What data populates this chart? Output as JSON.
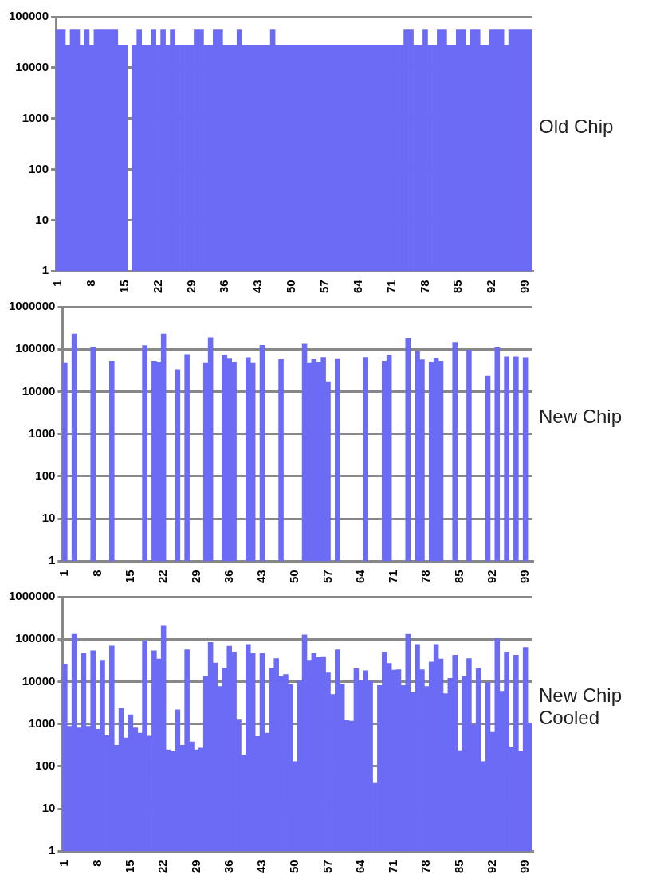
{
  "chart_data": [
    {
      "type": "bar",
      "title": "Old Chip",
      "color": "#6b6bf5",
      "log": true,
      "grid": "y",
      "ylim": [
        1,
        100000
      ],
      "yticks": [
        1,
        10,
        100,
        1000,
        10000,
        100000
      ],
      "categories": [
        "1",
        null,
        null,
        null,
        null,
        null,
        null,
        "8",
        null,
        null,
        null,
        null,
        null,
        null,
        "15",
        null,
        null,
        null,
        null,
        null,
        null,
        "22",
        null,
        null,
        null,
        null,
        null,
        null,
        "29",
        null,
        null,
        null,
        null,
        null,
        null,
        "36",
        null,
        null,
        null,
        null,
        null,
        null,
        "43",
        null,
        null,
        null,
        null,
        null,
        null,
        "50",
        null,
        null,
        null,
        null,
        null,
        null,
        "57",
        null,
        null,
        null,
        null,
        null,
        null,
        "64",
        null,
        null,
        null,
        null,
        null,
        null,
        "71",
        null,
        null,
        null,
        null,
        null,
        null,
        "78",
        null,
        null,
        null,
        null,
        null,
        null,
        "85",
        null,
        null,
        null,
        null,
        null,
        null,
        "92",
        null,
        null,
        null,
        null,
        null,
        null,
        "99",
        null
      ],
      "values": [
        55000,
        55000,
        28000,
        55000,
        55000,
        28000,
        55000,
        28000,
        55000,
        55000,
        55000,
        55000,
        55000,
        28000,
        28000,
        null,
        28000,
        55000,
        28000,
        28000,
        55000,
        28000,
        55000,
        28000,
        55000,
        28000,
        28000,
        28000,
        28000,
        55000,
        55000,
        28000,
        28000,
        55000,
        55000,
        28000,
        28000,
        28000,
        55000,
        28000,
        28000,
        28000,
        28000,
        28000,
        28000,
        55000,
        28000,
        28000,
        28000,
        28000,
        28000,
        28000,
        28000,
        28000,
        28000,
        28000,
        28000,
        28000,
        28000,
        28000,
        28000,
        28000,
        28000,
        28000,
        28000,
        28000,
        28000,
        28000,
        28000,
        28000,
        28000,
        28000,
        28000,
        55000,
        55000,
        28000,
        28000,
        55000,
        28000,
        28000,
        55000,
        55000,
        28000,
        28000,
        55000,
        55000,
        28000,
        55000,
        55000,
        28000,
        28000,
        55000,
        55000,
        55000,
        28000,
        55000,
        55000,
        55000,
        55000,
        55000
      ]
    },
    {
      "type": "bar",
      "title": "New Chip",
      "color": "#6b6bf5",
      "log": true,
      "grid": "y",
      "ylim": [
        1,
        1000000
      ],
      "yticks": [
        1,
        10,
        100,
        1000,
        10000,
        100000,
        1000000
      ],
      "categories": [
        "1",
        null,
        null,
        null,
        null,
        null,
        null,
        "8",
        null,
        null,
        null,
        null,
        null,
        null,
        "15",
        null,
        null,
        null,
        null,
        null,
        null,
        "22",
        null,
        null,
        null,
        null,
        null,
        null,
        "29",
        null,
        null,
        null,
        null,
        null,
        null,
        "36",
        null,
        null,
        null,
        null,
        null,
        null,
        "43",
        null,
        null,
        null,
        null,
        null,
        null,
        "50",
        null,
        null,
        null,
        null,
        null,
        null,
        "57",
        null,
        null,
        null,
        null,
        null,
        null,
        "64",
        null,
        null,
        null,
        null,
        null,
        null,
        "71",
        null,
        null,
        null,
        null,
        null,
        null,
        "78",
        null,
        null,
        null,
        null,
        null,
        null,
        "85",
        null,
        null,
        null,
        null,
        null,
        null,
        "92",
        null,
        null,
        null,
        null,
        null,
        null,
        "99",
        null
      ],
      "values": [
        48000,
        null,
        228000,
        null,
        null,
        null,
        112000,
        null,
        null,
        null,
        52000,
        null,
        null,
        null,
        null,
        null,
        null,
        122000,
        null,
        52000,
        50000,
        228000,
        null,
        null,
        33000,
        null,
        75000,
        null,
        null,
        null,
        48000,
        187000,
        null,
        null,
        72000,
        61000,
        50000,
        null,
        null,
        63000,
        48000,
        null,
        124000,
        null,
        null,
        null,
        58000,
        null,
        null,
        null,
        null,
        132000,
        48000,
        58000,
        50000,
        64000,
        17000,
        null,
        60000,
        null,
        null,
        null,
        null,
        null,
        64000,
        null,
        null,
        null,
        52000,
        73000,
        null,
        null,
        null,
        183000,
        null,
        87000,
        56000,
        null,
        50000,
        62000,
        52000,
        null,
        null,
        145000,
        null,
        null,
        95000,
        null,
        null,
        null,
        23000,
        null,
        108000,
        null,
        66000,
        null,
        66000,
        null,
        63000,
        null
      ]
    },
    {
      "type": "bar",
      "title": "New Chip Cooled",
      "color": "#6b6bf5",
      "log": true,
      "grid": "y",
      "ylim": [
        1,
        1000000
      ],
      "yticks": [
        1,
        10,
        100,
        1000,
        10000,
        100000,
        1000000
      ],
      "categories": [
        "1",
        null,
        null,
        null,
        null,
        null,
        null,
        "8",
        null,
        null,
        null,
        null,
        null,
        null,
        "15",
        null,
        null,
        null,
        null,
        null,
        null,
        "22",
        null,
        null,
        null,
        null,
        null,
        null,
        "29",
        null,
        null,
        null,
        null,
        null,
        null,
        "36",
        null,
        null,
        null,
        null,
        null,
        null,
        "43",
        null,
        null,
        null,
        null,
        null,
        null,
        "50",
        null,
        null,
        null,
        null,
        null,
        null,
        "57",
        null,
        null,
        null,
        null,
        null,
        null,
        "64",
        null,
        null,
        null,
        null,
        null,
        null,
        "71",
        null,
        null,
        null,
        null,
        null,
        null,
        "78",
        null,
        null,
        null,
        null,
        null,
        null,
        "85",
        null,
        null,
        null,
        null,
        null,
        null,
        "92",
        null,
        null,
        null,
        null,
        null,
        null,
        "99",
        null
      ],
      "values": [
        26000,
        880,
        131000,
        810,
        46000,
        880,
        53000,
        750,
        32000,
        530,
        69000,
        315,
        2350,
        470,
        1650,
        810,
        610,
        91000,
        520,
        53000,
        34000,
        204000,
        245,
        230,
        2170,
        315,
        56000,
        380,
        245,
        270,
        13500,
        84000,
        27500,
        7700,
        21000,
        68000,
        50000,
        1250,
        186,
        75000,
        46000,
        505,
        46000,
        610,
        20500,
        35000,
        13000,
        14600,
        8500,
        130,
        10300,
        126000,
        32000,
        46000,
        38000,
        39000,
        16000,
        5000,
        56000,
        8800,
        1200,
        1170,
        20000,
        10300,
        18000,
        10300,
        40,
        8100,
        50000,
        27000,
        18600,
        19000,
        8100,
        131000,
        5500,
        75000,
        19000,
        7700,
        29000,
        75000,
        34000,
        5200,
        12000,
        42000,
        236,
        13500,
        35000,
        950,
        20000,
        130,
        9500,
        640,
        103000,
        5900,
        50000,
        290,
        42000,
        230,
        64000,
        1060
      ]
    }
  ]
}
